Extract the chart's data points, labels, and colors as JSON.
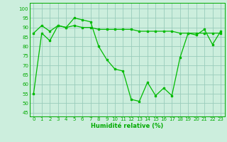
{
  "line1_x": [
    0,
    1,
    2,
    3,
    4,
    5,
    6,
    7,
    8,
    9,
    10,
    11,
    12,
    13,
    14,
    15,
    16,
    17,
    18,
    19,
    20,
    21,
    22,
    23
  ],
  "line1_y": [
    55,
    87,
    83,
    91,
    90,
    95,
    94,
    93,
    80,
    73,
    68,
    67,
    52,
    51,
    61,
    54,
    58,
    54,
    74,
    87,
    86,
    89,
    81,
    88
  ],
  "line2_x": [
    0,
    1,
    2,
    3,
    4,
    5,
    6,
    7,
    8,
    9,
    10,
    11,
    12,
    13,
    14,
    15,
    16,
    17,
    18,
    19,
    20,
    21,
    22,
    23
  ],
  "line2_y": [
    87,
    91,
    88,
    91,
    90,
    91,
    90,
    90,
    89,
    89,
    89,
    89,
    89,
    88,
    88,
    88,
    88,
    88,
    87,
    87,
    87,
    87,
    87,
    87
  ],
  "line_color": "#00bb00",
  "bg_color": "#cceedd",
  "grid_color": "#99ccbb",
  "xlabel": "Humidité relative (%)",
  "xlabel_color": "#00aa00",
  "ylabel_ticks": [
    45,
    50,
    55,
    60,
    65,
    70,
    75,
    80,
    85,
    90,
    95,
    100
  ],
  "xlim": [
    -0.5,
    23.5
  ],
  "ylim": [
    43,
    103
  ],
  "tick_color": "#00aa00",
  "spine_color": "#00aa00",
  "tick_fontsize": 5.0,
  "xlabel_fontsize": 6.0
}
